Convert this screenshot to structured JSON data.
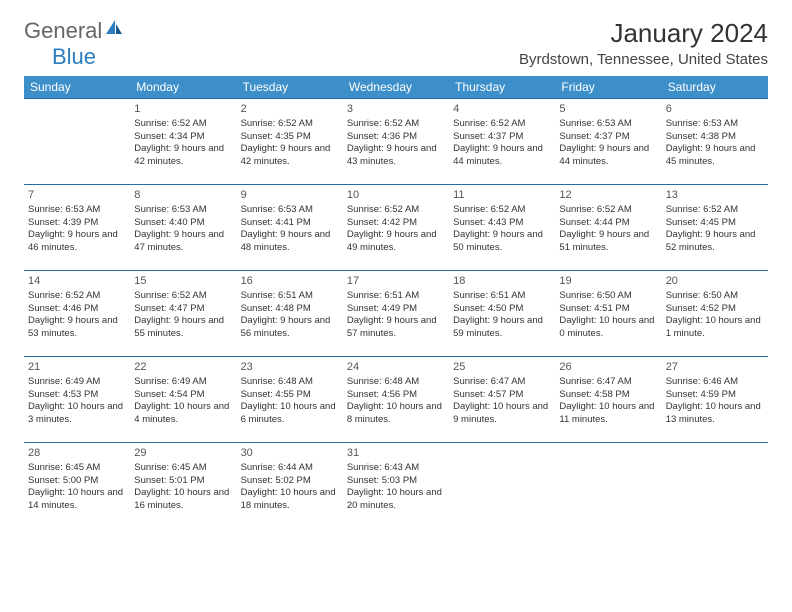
{
  "logo": {
    "text1": "General",
    "text2": "Blue"
  },
  "title": "January 2024",
  "location": "Byrdstown, Tennessee, United States",
  "colors": {
    "header_bg": "#3d8fc9",
    "header_text": "#ffffff",
    "border": "#2b6ca3",
    "logo_blue": "#2b7cc0",
    "body_text": "#333333"
  },
  "weekdays": [
    "Sunday",
    "Monday",
    "Tuesday",
    "Wednesday",
    "Thursday",
    "Friday",
    "Saturday"
  ],
  "weeks": [
    [
      null,
      {
        "d": "1",
        "sr": "6:52 AM",
        "ss": "4:34 PM",
        "dl": "9 hours and 42 minutes."
      },
      {
        "d": "2",
        "sr": "6:52 AM",
        "ss": "4:35 PM",
        "dl": "9 hours and 42 minutes."
      },
      {
        "d": "3",
        "sr": "6:52 AM",
        "ss": "4:36 PM",
        "dl": "9 hours and 43 minutes."
      },
      {
        "d": "4",
        "sr": "6:52 AM",
        "ss": "4:37 PM",
        "dl": "9 hours and 44 minutes."
      },
      {
        "d": "5",
        "sr": "6:53 AM",
        "ss": "4:37 PM",
        "dl": "9 hours and 44 minutes."
      },
      {
        "d": "6",
        "sr": "6:53 AM",
        "ss": "4:38 PM",
        "dl": "9 hours and 45 minutes."
      }
    ],
    [
      {
        "d": "7",
        "sr": "6:53 AM",
        "ss": "4:39 PM",
        "dl": "9 hours and 46 minutes."
      },
      {
        "d": "8",
        "sr": "6:53 AM",
        "ss": "4:40 PM",
        "dl": "9 hours and 47 minutes."
      },
      {
        "d": "9",
        "sr": "6:53 AM",
        "ss": "4:41 PM",
        "dl": "9 hours and 48 minutes."
      },
      {
        "d": "10",
        "sr": "6:52 AM",
        "ss": "4:42 PM",
        "dl": "9 hours and 49 minutes."
      },
      {
        "d": "11",
        "sr": "6:52 AM",
        "ss": "4:43 PM",
        "dl": "9 hours and 50 minutes."
      },
      {
        "d": "12",
        "sr": "6:52 AM",
        "ss": "4:44 PM",
        "dl": "9 hours and 51 minutes."
      },
      {
        "d": "13",
        "sr": "6:52 AM",
        "ss": "4:45 PM",
        "dl": "9 hours and 52 minutes."
      }
    ],
    [
      {
        "d": "14",
        "sr": "6:52 AM",
        "ss": "4:46 PM",
        "dl": "9 hours and 53 minutes."
      },
      {
        "d": "15",
        "sr": "6:52 AM",
        "ss": "4:47 PM",
        "dl": "9 hours and 55 minutes."
      },
      {
        "d": "16",
        "sr": "6:51 AM",
        "ss": "4:48 PM",
        "dl": "9 hours and 56 minutes."
      },
      {
        "d": "17",
        "sr": "6:51 AM",
        "ss": "4:49 PM",
        "dl": "9 hours and 57 minutes."
      },
      {
        "d": "18",
        "sr": "6:51 AM",
        "ss": "4:50 PM",
        "dl": "9 hours and 59 minutes."
      },
      {
        "d": "19",
        "sr": "6:50 AM",
        "ss": "4:51 PM",
        "dl": "10 hours and 0 minutes."
      },
      {
        "d": "20",
        "sr": "6:50 AM",
        "ss": "4:52 PM",
        "dl": "10 hours and 1 minute."
      }
    ],
    [
      {
        "d": "21",
        "sr": "6:49 AM",
        "ss": "4:53 PM",
        "dl": "10 hours and 3 minutes."
      },
      {
        "d": "22",
        "sr": "6:49 AM",
        "ss": "4:54 PM",
        "dl": "10 hours and 4 minutes."
      },
      {
        "d": "23",
        "sr": "6:48 AM",
        "ss": "4:55 PM",
        "dl": "10 hours and 6 minutes."
      },
      {
        "d": "24",
        "sr": "6:48 AM",
        "ss": "4:56 PM",
        "dl": "10 hours and 8 minutes."
      },
      {
        "d": "25",
        "sr": "6:47 AM",
        "ss": "4:57 PM",
        "dl": "10 hours and 9 minutes."
      },
      {
        "d": "26",
        "sr": "6:47 AM",
        "ss": "4:58 PM",
        "dl": "10 hours and 11 minutes."
      },
      {
        "d": "27",
        "sr": "6:46 AM",
        "ss": "4:59 PM",
        "dl": "10 hours and 13 minutes."
      }
    ],
    [
      {
        "d": "28",
        "sr": "6:45 AM",
        "ss": "5:00 PM",
        "dl": "10 hours and 14 minutes."
      },
      {
        "d": "29",
        "sr": "6:45 AM",
        "ss": "5:01 PM",
        "dl": "10 hours and 16 minutes."
      },
      {
        "d": "30",
        "sr": "6:44 AM",
        "ss": "5:02 PM",
        "dl": "10 hours and 18 minutes."
      },
      {
        "d": "31",
        "sr": "6:43 AM",
        "ss": "5:03 PM",
        "dl": "10 hours and 20 minutes."
      },
      null,
      null,
      null
    ]
  ],
  "labels": {
    "sunrise": "Sunrise:",
    "sunset": "Sunset:",
    "daylight": "Daylight:"
  }
}
